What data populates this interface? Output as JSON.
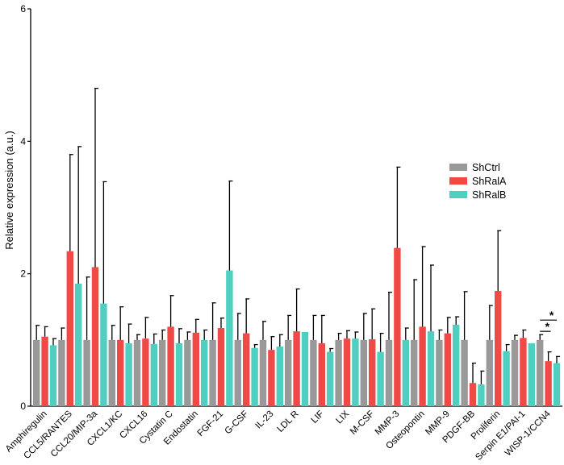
{
  "chart_data": {
    "type": "bar",
    "ylabel": "Relative expression (a.u.)",
    "ylim": [
      0,
      6
    ],
    "yticks": [
      0,
      2,
      4,
      6
    ],
    "categories": [
      "Amphiregulin",
      "CCL5/RANTES",
      "CCL20/MIP-3a",
      "CXCL1/KC",
      "CXCL16",
      "Cystatin C",
      "Endostatin",
      "FGF-21",
      "G-CSF",
      "IL-23",
      "LDL R",
      "LIF",
      "LIX",
      "M-CSF",
      "MMP-3",
      "Osteopontin",
      "MMP-9",
      "PDGF-BB",
      "Proliferin",
      "Serpin E1/PAI-1",
      "WISP-1/CCN4"
    ],
    "highlight_category": "WISP-1/CCN4",
    "highlight_color": "#2f8fd0",
    "series": [
      {
        "name": "ShCtrl",
        "color": "#999999",
        "values": [
          1.0,
          1.0,
          1.0,
          1.0,
          1.0,
          1.0,
          1.0,
          1.0,
          1.0,
          1.0,
          1.0,
          1.0,
          1.0,
          1.0,
          1.0,
          1.0,
          1.0,
          1.0,
          1.0,
          1.0,
          1.0
        ],
        "errors": [
          0.22,
          0.18,
          0.95,
          0.22,
          0.08,
          0.15,
          0.12,
          0.56,
          0.4,
          0.28,
          0.37,
          0.37,
          0.1,
          0.4,
          0.72,
          0.91,
          0.15,
          0.73,
          0.52,
          0.07,
          0.08
        ]
      },
      {
        "name": "ShRalA",
        "color": "#ef4a45",
        "values": [
          1.05,
          2.34,
          2.1,
          1.0,
          1.02,
          1.2,
          1.11,
          1.18,
          1.1,
          0.85,
          1.13,
          0.95,
          1.02,
          1.01,
          2.39,
          1.2,
          1.1,
          0.35,
          1.74,
          1.03,
          0.68
        ]
      },
      {
        "name": "ShRalB",
        "color": "#4fcfc0",
        "values": [
          0.92,
          1.85,
          1.55,
          0.95,
          0.94,
          0.95,
          1.0,
          2.05,
          0.88,
          0.9,
          1.12,
          0.82,
          1.02,
          0.82,
          1.0,
          1.13,
          1.23,
          0.33,
          0.83,
          0.95,
          0.65
        ]
      }
    ],
    "errors_ralA": [
      0.15,
      1.46,
      2.7,
      0.5,
      0.32,
      0.47,
      0.2,
      0.15,
      0.52,
      0.2,
      0.64,
      0.42,
      0.12,
      0.46,
      1.22,
      1.21,
      0.24,
      0.3,
      0.91,
      0.12,
      0.14
    ],
    "errors_ralB": [
      0.1,
      2.07,
      1.84,
      0.29,
      0.15,
      0.22,
      0.15,
      1.35,
      0.05,
      0.18,
      0.0,
      0.05,
      0.1,
      0.28,
      0.18,
      1.0,
      0.12,
      0.2,
      0.1,
      0.0,
      0.1
    ],
    "significance": "*",
    "legend_position": "right",
    "grid": false
  }
}
